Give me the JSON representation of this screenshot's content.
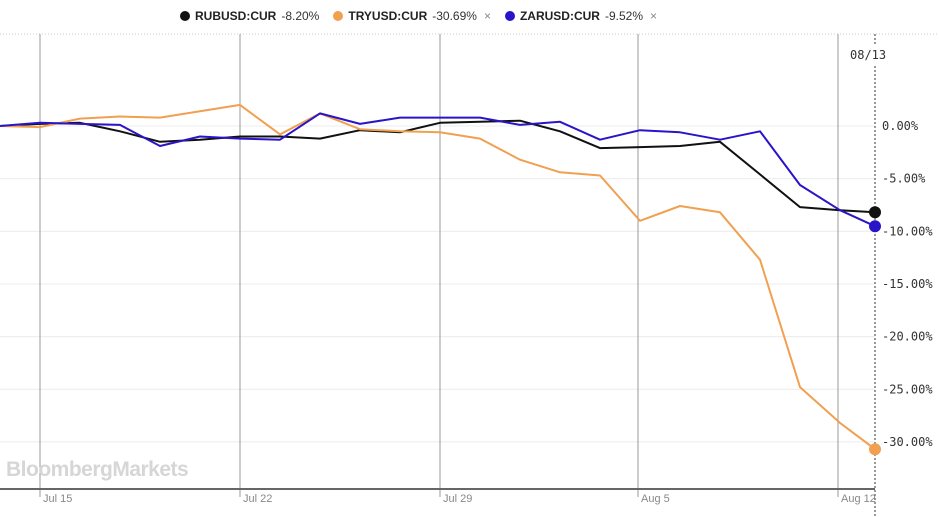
{
  "legend": {
    "items": [
      {
        "name": "RUBUSD:CUR",
        "change": "-8.20%",
        "color": "#111111",
        "closable": false
      },
      {
        "name": "TRYUSD:CUR",
        "change": "-30.69%",
        "color": "#f0a050",
        "closable": true
      },
      {
        "name": "ZARUSD:CUR",
        "change": "-9.52%",
        "color": "#2a14c8",
        "closable": true
      }
    ],
    "close_glyph": "×"
  },
  "crosshair_date": "08/13",
  "watermark": "BloombergMarkets",
  "colors": {
    "grid": "#ececec",
    "axis": "#666666",
    "crosshair": "#333333"
  },
  "chart_data": {
    "type": "line",
    "title": "",
    "xlabel": "",
    "ylabel": "",
    "x": [
      "Jul 12",
      "Jul 15",
      "Jul 16",
      "Jul 17",
      "Jul 18",
      "Jul 19",
      "Jul 22",
      "Jul 23",
      "Jul 24",
      "Jul 25",
      "Jul 26",
      "Jul 29",
      "Jul 30",
      "Jul 31",
      "Aug 1",
      "Aug 2",
      "Aug 5",
      "Aug 6",
      "Aug 7",
      "Aug 8",
      "Aug 9",
      "Aug 12",
      "Aug 13"
    ],
    "x_ticks": [
      "Jul 15",
      "Jul 22",
      "Jul 29",
      "Aug 5",
      "Aug 12"
    ],
    "y_ticks": [
      "0.00%",
      "-5.00%",
      "-10.00%",
      "-15.00%",
      "-20.00%",
      "-25.00%",
      "-30.00%"
    ],
    "ylim": [
      -33,
      6
    ],
    "grid": true,
    "legend_position": "top",
    "series": [
      {
        "name": "RUBUSD:CUR",
        "color": "#111111",
        "values": [
          0.0,
          0.2,
          0.3,
          -0.5,
          -1.5,
          -1.3,
          -1.0,
          -1.0,
          -1.2,
          -0.4,
          -0.6,
          0.3,
          0.4,
          0.5,
          -0.5,
          -2.1,
          -2.0,
          -1.9,
          -1.5,
          -4.6,
          -7.7,
          -8.0,
          -8.2
        ]
      },
      {
        "name": "TRYUSD:CUR",
        "color": "#f0a050",
        "values": [
          0.0,
          -0.1,
          0.7,
          0.9,
          0.8,
          1.4,
          2.0,
          -0.8,
          1.2,
          -0.3,
          -0.5,
          -0.6,
          -1.2,
          -3.2,
          -4.4,
          -4.7,
          -9.0,
          -7.6,
          -8.2,
          -12.7,
          -24.8,
          -28.2,
          -30.69
        ]
      },
      {
        "name": "ZARUSD:CUR",
        "color": "#2a14c8",
        "values": [
          0.0,
          0.3,
          0.2,
          0.1,
          -1.9,
          -1.0,
          -1.2,
          -1.3,
          1.2,
          0.2,
          0.8,
          0.8,
          0.8,
          0.1,
          0.4,
          -1.3,
          -0.4,
          -0.6,
          -1.3,
          -0.5,
          -5.6,
          -8.0,
          -9.52
        ]
      }
    ]
  }
}
